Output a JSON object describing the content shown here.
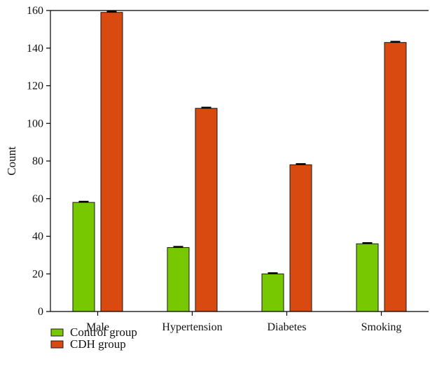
{
  "chart_data": {
    "type": "bar",
    "categories": [
      "Male",
      "Hypertension",
      "Diabetes",
      "Smoking"
    ],
    "series": [
      {
        "name": "Control group",
        "color": "#77c800",
        "values": [
          58,
          34,
          20,
          36
        ]
      },
      {
        "name": "CDH group",
        "color": "#d94a10",
        "values": [
          159,
          108,
          78,
          143
        ]
      }
    ],
    "title": "",
    "xlabel": "",
    "ylabel": "Count",
    "ylim": [
      0,
      160
    ],
    "yticks": [
      0,
      20,
      40,
      60,
      80,
      100,
      120,
      140,
      160
    ],
    "error_bars": true,
    "grid": false,
    "legend_position": "bottom-left"
  }
}
